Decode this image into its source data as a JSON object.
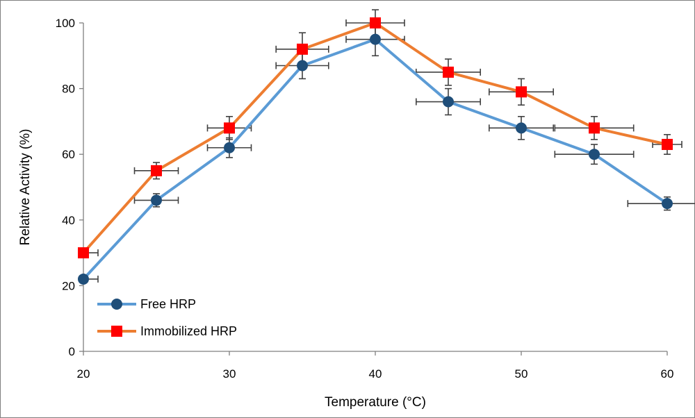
{
  "chart_data": {
    "type": "line",
    "xlabel": "Temperature (°C)",
    "ylabel": "Relative Activity (%)",
    "xlim": [
      20,
      60
    ],
    "ylim": [
      0,
      100
    ],
    "xticks": [
      20,
      30,
      40,
      50,
      60
    ],
    "yticks": [
      0,
      20,
      40,
      60,
      80,
      100
    ],
    "grid": false,
    "legend_position": "bottom-left",
    "x": [
      20,
      25,
      30,
      35,
      40,
      45,
      50,
      55,
      60
    ],
    "series": [
      {
        "name": "Free HRP",
        "values": [
          22,
          46,
          62,
          87,
          95,
          76,
          68,
          60,
          45
        ],
        "y_error": [
          0,
          2,
          3,
          4,
          5,
          4,
          3.5,
          3,
          2
        ],
        "x_error": [
          1,
          1.5,
          1.5,
          1.8,
          2,
          2.2,
          2.2,
          2.7,
          2.7
        ],
        "line_color": "#5b9bd5",
        "marker_color": "#1f4e79",
        "marker": "circle"
      },
      {
        "name": "Immobilized HRP",
        "values": [
          30,
          55,
          68,
          92,
          100,
          85,
          79,
          68,
          63
        ],
        "y_error": [
          0,
          2.5,
          3.5,
          5,
          4,
          4,
          4,
          3.5,
          3
        ],
        "x_error": [
          1,
          1.5,
          1.5,
          1.8,
          2,
          2.2,
          2.2,
          2.7,
          1
        ],
        "line_color": "#ed7d31",
        "marker_color": "#ff0000",
        "marker": "square"
      }
    ]
  }
}
